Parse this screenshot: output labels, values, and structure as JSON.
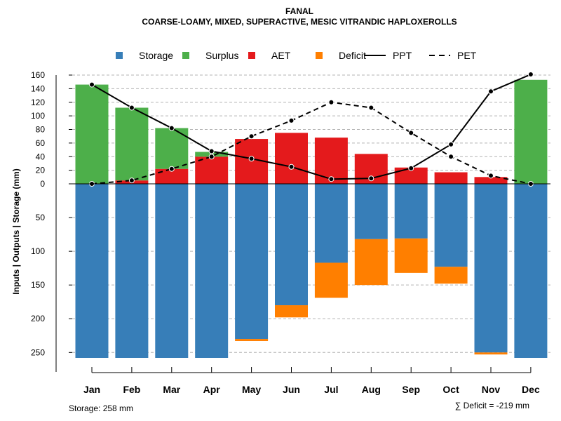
{
  "chart_data": {
    "type": "bar",
    "title": "FANAL",
    "subtitle": "COARSE-LOAMY, MIXED, SUPERACTIVE, MESIC VITRANDIC HAPLOXEROLLS",
    "ylabel": "Inputs | Outputs | Storage    (mm)",
    "categories": [
      "Jan",
      "Feb",
      "Mar",
      "Apr",
      "May",
      "Jun",
      "Jul",
      "Aug",
      "Sep",
      "Oct",
      "Nov",
      "Dec"
    ],
    "upper_ticks": [
      "0",
      "20",
      "40",
      "60",
      "80",
      "100",
      "120",
      "140",
      "160"
    ],
    "lower_ticks": [
      "50",
      "100",
      "150",
      "200",
      "250"
    ],
    "upper_ylim": [
      0,
      165
    ],
    "lower_ylim": [
      0,
      260
    ],
    "colors": {
      "storage": "#377eb8",
      "surplus": "#4daf4a",
      "aet": "#e41a1c",
      "deficit": "#ff7f00",
      "line": "#000000",
      "grid": "#b3b3b3"
    },
    "legend": [
      {
        "key": "storage",
        "label": "Storage",
        "kind": "box"
      },
      {
        "key": "surplus",
        "label": "Surplus",
        "kind": "box"
      },
      {
        "key": "aet",
        "label": "AET",
        "kind": "box"
      },
      {
        "key": "deficit",
        "label": "Deficit",
        "kind": "box"
      },
      {
        "key": "ppt",
        "label": "PPT",
        "kind": "solid"
      },
      {
        "key": "pet",
        "label": "PET",
        "kind": "dashed"
      }
    ],
    "series": [
      {
        "name": "AET",
        "values": [
          0,
          5,
          22,
          40,
          66,
          75,
          68,
          44,
          24,
          17,
          10,
          0
        ]
      },
      {
        "name": "Surplus",
        "values": [
          146,
          107,
          60,
          7,
          0,
          0,
          0,
          0,
          0,
          0,
          0,
          153
        ]
      },
      {
        "name": "Storage",
        "values": [
          258,
          258,
          258,
          258,
          230,
          180,
          117,
          82,
          81,
          123,
          250,
          258
        ]
      },
      {
        "name": "Deficit",
        "values": [
          0,
          0,
          0,
          0,
          3,
          18,
          52,
          68,
          51,
          25,
          3,
          0
        ]
      },
      {
        "name": "PPT",
        "values": [
          146,
          112,
          82,
          48,
          37,
          25,
          7,
          8,
          23,
          58,
          136,
          161
        ]
      },
      {
        "name": "PET",
        "values": [
          0,
          5,
          22,
          40,
          70,
          93,
          120,
          112,
          75,
          40,
          12,
          0
        ]
      }
    ],
    "notes": {
      "storage": "Storage: 258 mm",
      "deficit": "∑ Deficit = -219 mm"
    }
  }
}
